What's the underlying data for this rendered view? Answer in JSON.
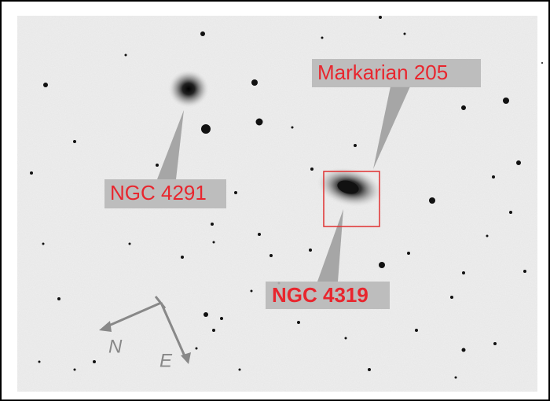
{
  "labels": {
    "markarian": "Markarian 205",
    "ngc4291": "NGC 4291",
    "ngc4319": "NGC 4319"
  },
  "compass": {
    "north": "N",
    "east": "E"
  }
}
